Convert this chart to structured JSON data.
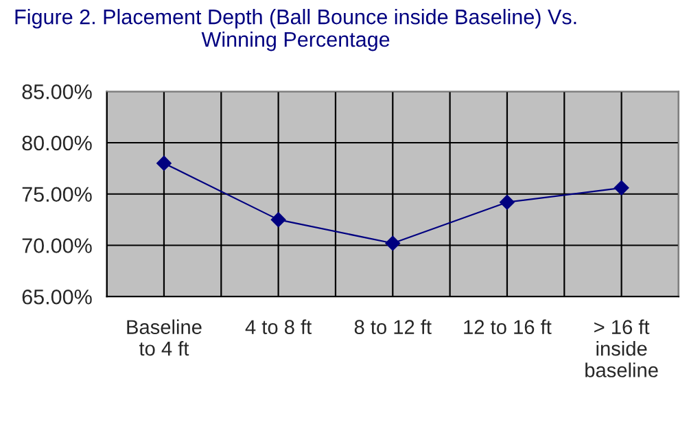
{
  "chart_data": {
    "type": "line",
    "title": "Figure 2. Placement Depth (Ball Bounce inside Baseline) Vs.\nWinning Percentage",
    "categories": [
      "Baseline\nto 4 ft",
      "4 to 8 ft",
      "8 to 12 ft",
      "12 to 16 ft",
      "> 16 ft\ninside\nbaseline"
    ],
    "series": [
      {
        "color": "#000080",
        "values": [
          78.0,
          72.5,
          70.2,
          74.2,
          75.6
        ]
      }
    ],
    "ylim": [
      65,
      85
    ],
    "yticks": [
      {
        "value": 65,
        "label": "65.00%"
      },
      {
        "value": 70,
        "label": "70.00%"
      },
      {
        "value": 75,
        "label": "75.00%"
      },
      {
        "value": 80,
        "label": "80.00%"
      },
      {
        "value": 85,
        "label": "85.00%"
      }
    ],
    "grid": true,
    "marker": "diamond",
    "line_style": "solid",
    "legend": false
  }
}
